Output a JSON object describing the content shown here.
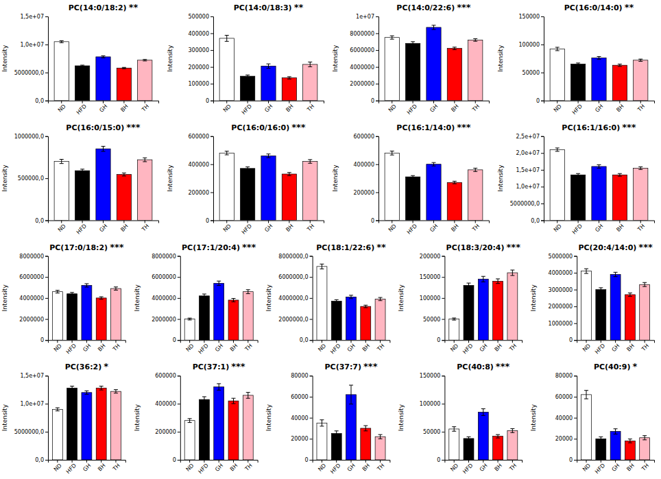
{
  "chart_data": [
    {
      "type": "bar",
      "title": "PC(14:0/18:2)",
      "annotations": [
        "**"
      ],
      "ylabel": "Intensity",
      "categories": [
        "ND",
        "HFD",
        "GH",
        "BH",
        "TH"
      ],
      "values": [
        10500000.0,
        6200000,
        7800000,
        5800000,
        7200000
      ],
      "errors": [
        180000,
        120000,
        180000,
        120000,
        130000
      ],
      "colors": [
        "white",
        "black",
        "blue",
        "red",
        "#FFB6C1"
      ],
      "ylim": [
        0,
        15000000.0
      ],
      "yticks": [
        {
          "value": 0,
          "label": "0,0"
        },
        {
          "value": 5000000,
          "label": "5000000,0"
        },
        {
          "value": 10000000.0,
          "label": "1,0e+07"
        },
        {
          "value": 15000000.0,
          "label": "1,5e+07"
        }
      ],
      "grid": false
    },
    {
      "type": "bar",
      "title": "PC(14:0/18:3)",
      "annotations": [
        "**"
      ],
      "ylabel": "Intensity",
      "categories": [
        "ND",
        "HFD",
        "GH",
        "BH",
        "TH"
      ],
      "values": [
        370000,
        145000,
        205000,
        135000,
        215000
      ],
      "errors": [
        18000,
        7000,
        13000,
        7000,
        14000
      ],
      "colors": [
        "white",
        "black",
        "blue",
        "red",
        "#FFB6C1"
      ],
      "ylim": [
        0,
        500000
      ],
      "yticks": [
        0,
        100000,
        200000,
        300000,
        400000,
        500000
      ],
      "grid": false
    },
    {
      "type": "bar",
      "title": "PC(14:0/22:6)",
      "annotations": [
        "***"
      ],
      "ylabel": "Intensity",
      "categories": [
        "ND",
        "HFD",
        "GH",
        "BH",
        "TH"
      ],
      "values": [
        7500000,
        6800000,
        8700000,
        6200000,
        7200000
      ],
      "errors": [
        200000,
        200000,
        250000,
        150000,
        150000
      ],
      "colors": [
        "white",
        "black",
        "blue",
        "red",
        "#FFB6C1"
      ],
      "ylim": [
        0,
        10000000.0
      ],
      "yticks": [
        0,
        2000000,
        4000000,
        6000000,
        8000000,
        {
          "value": 10000000.0,
          "label": "1e+07"
        }
      ],
      "grid": false
    },
    {
      "type": "bar",
      "title": "PC(16:0/14:0)",
      "annotations": [
        "**"
      ],
      "ylabel": "Intensity",
      "categories": [
        "ND",
        "HFD",
        "GH",
        "BH",
        "TH"
      ],
      "values": [
        92000,
        65000,
        76000,
        63000,
        72000
      ],
      "errors": [
        3000,
        2000,
        2500,
        2000,
        2000
      ],
      "colors": [
        "white",
        "black",
        "blue",
        "red",
        "#FFB6C1"
      ],
      "ylim": [
        0,
        150000
      ],
      "yticks": [
        0,
        50000,
        100000,
        150000
      ],
      "grid": false
    },
    {
      "type": "bar",
      "title": "PC(16:0/15:0)",
      "annotations": [
        "***"
      ],
      "ylabel": "Intensity",
      "categories": [
        "ND",
        "HFD",
        "GH",
        "BH",
        "TH"
      ],
      "values": [
        700000,
        590000,
        850000,
        545000,
        720000
      ],
      "errors": [
        25000,
        18000,
        30000,
        18000,
        23000
      ],
      "colors": [
        "white",
        "black",
        "blue",
        "red",
        "#FFB6C1"
      ],
      "ylim": [
        0,
        1000000
      ],
      "yticks": [
        {
          "value": 0,
          "label": "0,0"
        },
        {
          "value": 500000,
          "label": "500000,0"
        },
        {
          "value": 1000000,
          "label": "1000000,0"
        }
      ],
      "grid": false
    },
    {
      "type": "bar",
      "title": "PC(16:0/16:0)",
      "annotations": [
        "***"
      ],
      "ylabel": "Intensity",
      "categories": [
        "ND",
        "HFD",
        "GH",
        "BH",
        "TH"
      ],
      "values": [
        480000,
        370000,
        460000,
        330000,
        420000
      ],
      "errors": [
        13000,
        11000,
        13000,
        11000,
        13000
      ],
      "colors": [
        "white",
        "black",
        "blue",
        "red",
        "#FFB6C1"
      ],
      "ylim": [
        0,
        600000
      ],
      "yticks": [
        0,
        200000,
        400000,
        600000
      ],
      "grid": false
    },
    {
      "type": "bar",
      "title": "PC(16:1/14:0)",
      "annotations": [
        "***"
      ],
      "ylabel": "Intensity",
      "categories": [
        "ND",
        "HFD",
        "GH",
        "BH",
        "TH"
      ],
      "values": [
        480000,
        310000,
        400000,
        270000,
        360000
      ],
      "errors": [
        14000,
        9000,
        12000,
        9000,
        12000
      ],
      "colors": [
        "white",
        "black",
        "blue",
        "red",
        "#FFB6C1"
      ],
      "ylim": [
        0,
        600000
      ],
      "yticks": [
        0,
        200000,
        400000,
        600000
      ],
      "grid": false
    },
    {
      "type": "bar",
      "title": "PC(16:1/16:0)",
      "annotations": [
        "***"
      ],
      "ylabel": "Intensity",
      "categories": [
        "ND",
        "HFD",
        "GH",
        "BH",
        "TH"
      ],
      "values": [
        21000000.0,
        13500000.0,
        16000000.0,
        13500000.0,
        15500000.0
      ],
      "errors": [
        500000.0,
        400000.0,
        500000.0,
        400000.0,
        400000.0
      ],
      "colors": [
        "white",
        "black",
        "blue",
        "red",
        "#FFB6C1"
      ],
      "ylim": [
        0,
        25000000.0
      ],
      "yticks": [
        {
          "value": 0,
          "label": "0,0"
        },
        {
          "value": 5000000,
          "label": "5000000,0"
        },
        {
          "value": 10000000.0,
          "label": "1,0e+07"
        },
        {
          "value": 15000000.0,
          "label": "1,5e+07"
        },
        {
          "value": 20000000.0,
          "label": "2,0e+07"
        },
        {
          "value": 25000000.0,
          "label": "2,5e+07"
        }
      ],
      "grid": false
    },
    {
      "type": "bar",
      "title": "PC(17:0/18:2)",
      "annotations": [
        "***"
      ],
      "ylabel": "Intensity",
      "categories": [
        "ND",
        "HFD",
        "GH",
        "BH",
        "TH"
      ],
      "values": [
        4600000,
        4400000,
        5200000,
        4000000,
        4900000
      ],
      "errors": [
        130000,
        130000,
        160000,
        120000,
        150000
      ],
      "colors": [
        "white",
        "black",
        "blue",
        "red",
        "#FFB6C1"
      ],
      "ylim": [
        0,
        8000000
      ],
      "yticks": [
        0,
        2000000,
        4000000,
        6000000,
        8000000
      ],
      "grid": false
    },
    {
      "type": "bar",
      "title": "PC(17:1/20:4)",
      "annotations": [
        "***"
      ],
      "ylabel": "Intensity",
      "categories": [
        "ND",
        "HFD",
        "GH",
        "BH",
        "TH"
      ],
      "values": [
        2000000,
        4200000,
        5400000,
        3800000,
        4600000
      ],
      "errors": [
        90000,
        180000,
        210000,
        160000,
        190000
      ],
      "colors": [
        "white",
        "black",
        "blue",
        "red",
        "#FFB6C1"
      ],
      "ylim": [
        0,
        8000000
      ],
      "yticks": [
        0,
        2000000,
        4000000,
        6000000,
        8000000
      ],
      "grid": false
    },
    {
      "type": "bar",
      "title": "PC(18:1/22:6)",
      "annotations": [
        "**"
      ],
      "ylabel": "Intensity",
      "categories": [
        "ND",
        "HFD",
        "GH",
        "BH",
        "TH"
      ],
      "values": [
        7000000,
        3700000,
        4100000,
        3200000,
        3900000
      ],
      "errors": [
        230000,
        140000,
        160000,
        120000,
        150000
      ],
      "colors": [
        "white",
        "black",
        "blue",
        "red",
        "#FFB6C1"
      ],
      "ylim": [
        0,
        8000000
      ],
      "yticks": [
        {
          "value": 0,
          "label": "0,0"
        },
        {
          "value": 2000000,
          "label": "2000000,0"
        },
        {
          "value": 4000000,
          "label": "4000000,0"
        },
        {
          "value": 6000000,
          "label": "6000000,0"
        },
        {
          "value": 8000000,
          "label": "8000000,0"
        }
      ],
      "grid": false
    },
    {
      "type": "bar",
      "title": "PC(18:3/20:4)",
      "annotations": [
        "***"
      ],
      "ylabel": "Intensity",
      "categories": [
        "ND",
        "HFD",
        "GH",
        "BH",
        "TH"
      ],
      "values": [
        50000,
        130000,
        145000,
        140000,
        160000
      ],
      "errors": [
        2500,
        5500,
        6500,
        5500,
        6500
      ],
      "colors": [
        "white",
        "black",
        "blue",
        "red",
        "#FFB6C1"
      ],
      "ylim": [
        0,
        200000
      ],
      "yticks": [
        0,
        50000,
        100000,
        150000,
        200000
      ],
      "grid": false
    },
    {
      "type": "bar",
      "title": "PC(20:4/14:0)",
      "annotations": [
        "***"
      ],
      "ylabel": "Intensity",
      "categories": [
        "ND",
        "HFD",
        "GH",
        "BH",
        "TH"
      ],
      "values": [
        4100000,
        3000000,
        3900000,
        2700000,
        3300000
      ],
      "errors": [
        140000,
        110000,
        130000,
        100000,
        120000
      ],
      "colors": [
        "white",
        "black",
        "blue",
        "red",
        "#FFB6C1"
      ],
      "ylim": [
        0,
        5000000
      ],
      "yticks": [
        0,
        1000000,
        2000000,
        3000000,
        4000000,
        5000000
      ],
      "grid": false
    },
    {
      "type": "bar",
      "title": "PC(36:2)",
      "annotations": [
        "*"
      ],
      "ylabel": "Intensity",
      "categories": [
        "ND",
        "HFD",
        "GH",
        "BH",
        "TH"
      ],
      "values": [
        9000000,
        12800000,
        12000000,
        12800000,
        12200000
      ],
      "errors": [
        280000,
        340000,
        310000,
        340000,
        310000
      ],
      "colors": [
        "white",
        "black",
        "blue",
        "red",
        "#FFB6C1"
      ],
      "ylim": [
        0,
        15000000
      ],
      "yticks": [
        {
          "value": 0,
          "label": "0,0"
        },
        {
          "value": 5000000,
          "label": "5000000,0"
        },
        {
          "value": 10000000.0,
          "label": "1,0e+07"
        },
        {
          "value": 15000000.0,
          "label": "1,5e+07"
        }
      ],
      "grid": false
    },
    {
      "type": "bar",
      "title": "PC(37:1)",
      "annotations": [
        "***"
      ],
      "ylabel": "Intensity",
      "categories": [
        "ND",
        "HFD",
        "GH",
        "BH",
        "TH"
      ],
      "values": [
        280000,
        430000,
        520000,
        420000,
        460000
      ],
      "errors": [
        14000,
        20000,
        23000,
        19000,
        21000
      ],
      "colors": [
        "white",
        "black",
        "blue",
        "red",
        "#FFB6C1"
      ],
      "ylim": [
        0,
        600000
      ],
      "yticks": [
        0,
        200000,
        400000,
        600000
      ],
      "grid": false
    },
    {
      "type": "bar",
      "title": "PC(37:7)",
      "annotations": [
        "***"
      ],
      "ylabel": "Intensity",
      "categories": [
        "ND",
        "HFD",
        "GH",
        "BH",
        "TH"
      ],
      "values": [
        35000,
        25000,
        62000,
        30000,
        22000
      ],
      "errors": [
        3000,
        2500,
        9000,
        2500,
        2000
      ],
      "colors": [
        "white",
        "black",
        "blue",
        "red",
        "#FFB6C1"
      ],
      "ylim": [
        0,
        80000
      ],
      "yticks": [
        0,
        20000,
        40000,
        60000,
        80000
      ],
      "grid": false
    },
    {
      "type": "bar",
      "title": "PC(40:8)",
      "annotations": [
        "***"
      ],
      "ylabel": "Intensity",
      "categories": [
        "ND",
        "HFD",
        "GH",
        "BH",
        "TH"
      ],
      "values": [
        55000,
        38000,
        85000,
        42000,
        52000
      ],
      "errors": [
        4000,
        3000,
        6000,
        3000,
        3500
      ],
      "colors": [
        "white",
        "black",
        "blue",
        "red",
        "#FFB6C1"
      ],
      "ylim": [
        0,
        150000
      ],
      "yticks": [
        0,
        50000,
        100000,
        150000
      ],
      "grid": false
    },
    {
      "type": "bar",
      "title": "PC(40:9)",
      "annotations": [
        "*"
      ],
      "ylabel": "Intensity",
      "categories": [
        "ND",
        "HFD",
        "GH",
        "BH",
        "TH"
      ],
      "values": [
        62000,
        20000,
        27000,
        18000,
        21000
      ],
      "errors": [
        4000,
        1800,
        2500,
        1800,
        2000
      ],
      "colors": [
        "white",
        "black",
        "blue",
        "red",
        "#FFB6C1"
      ],
      "ylim": [
        0,
        80000
      ],
      "yticks": [
        0,
        20000,
        40000,
        60000,
        80000
      ],
      "grid": false
    }
  ]
}
